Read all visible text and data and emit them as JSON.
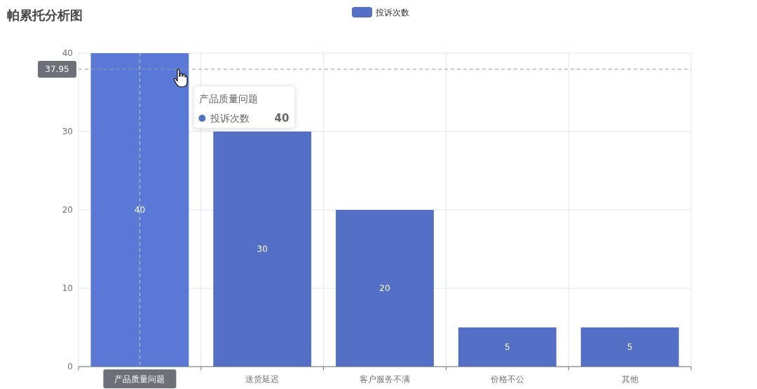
{
  "chart_data": {
    "type": "bar",
    "title": "帕累托分析图",
    "categories": [
      "产品质量问题",
      "送货延迟",
      "客户服务不满",
      "价格不公",
      "其他"
    ],
    "series": [
      {
        "name": "投诉次数",
        "color": "#5470c6",
        "colors": [
          "#5a79d6",
          "#5470c6",
          "#5470c6",
          "#5470c6",
          "#5470c6"
        ],
        "values": [
          40,
          30,
          20,
          5,
          5
        ]
      }
    ],
    "ylim": [
      0,
      40
    ],
    "yticks": [
      0,
      10,
      20,
      30,
      40
    ],
    "grid": true,
    "legend": "top",
    "data_labels": true,
    "ref_lines": [
      {
        "axis": "y",
        "value": 37.95,
        "label": "37.95",
        "line_style": "dashed",
        "color": "#9a9a9a"
      },
      {
        "axis": "x",
        "value": "产品质量问题",
        "line_style": "dashed",
        "color": "#c8d0e8"
      }
    ],
    "annotations": [
      "产品质量问题",
      "投诉次数",
      "40"
    ]
  }
}
